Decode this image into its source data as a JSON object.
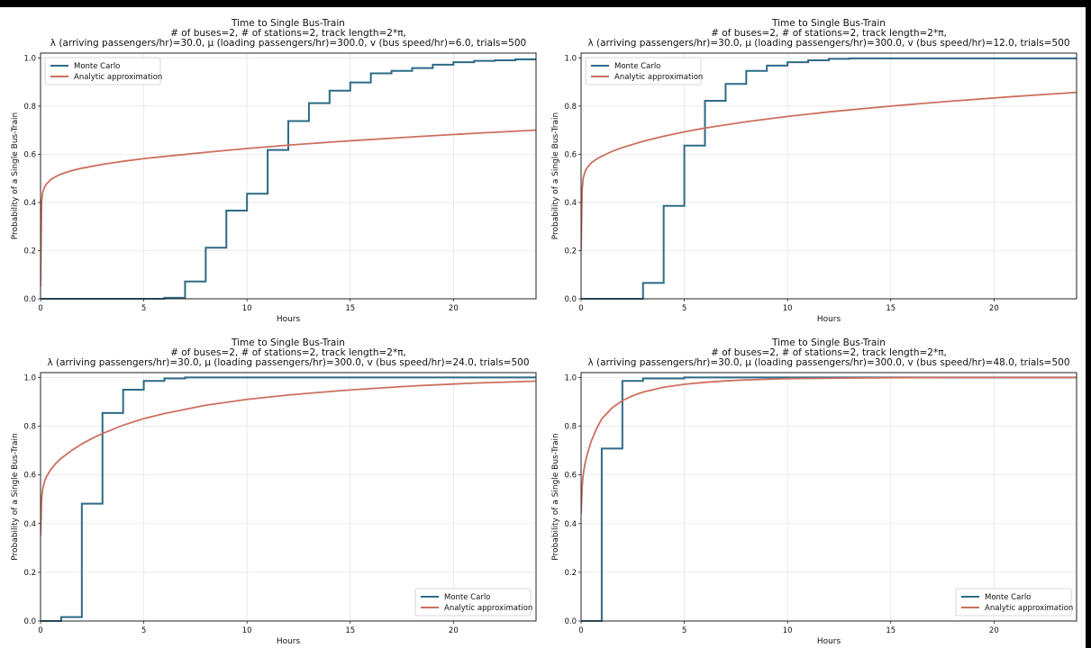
{
  "colors": {
    "monte_carlo": "#2e6a86",
    "analytic": "#cd6f5e",
    "grid": "#e6e6e6",
    "axes": "#222222",
    "background": "#ffffff",
    "frame": "#000000"
  },
  "chart_data": [
    {
      "type": "line",
      "title": "Time to Single Bus-Train",
      "subtitle_lines": [
        "# of buses=2, # of stations=2, track length=2*π,",
        "λ (arriving passengers/hr)=30.0, μ (loading passengers/hr)=300.0, v (bus speed/hr)=6.0, trials=500"
      ],
      "xlabel": "Hours",
      "ylabel": "Probability of a Single Bus-Train",
      "xlim": [
        0,
        24
      ],
      "ylim": [
        0,
        1.02
      ],
      "xticks": [
        0,
        5,
        10,
        15,
        20
      ],
      "xtick_labels": [
        "0",
        "5",
        "10",
        "15",
        "20"
      ],
      "yticks": [
        0,
        0.2,
        0.4,
        0.6,
        0.8,
        1.0
      ],
      "ytick_labels": [
        "0.0",
        "0.2",
        "0.4",
        "0.6",
        "0.8",
        "1.0"
      ],
      "grid": true,
      "legend_position": "top-left",
      "series": [
        {
          "name": "Monte Carlo",
          "kind": "step",
          "x": [
            0,
            6,
            7,
            8,
            9,
            10,
            11,
            12,
            13,
            14,
            15,
            16,
            17,
            18,
            19,
            20,
            21,
            22,
            23,
            24
          ],
          "y": [
            0,
            0.004,
            0.072,
            0.212,
            0.366,
            0.436,
            0.618,
            0.738,
            0.812,
            0.864,
            0.898,
            0.936,
            0.946,
            0.958,
            0.972,
            0.982,
            0.988,
            0.99,
            0.994,
            0.994
          ]
        },
        {
          "name": "Analytic approximation",
          "kind": "line",
          "x": [
            0,
            0.05,
            0.1,
            0.2,
            0.3,
            0.5,
            0.75,
            1,
            1.5,
            2,
            3,
            4,
            5,
            6,
            8,
            10,
            12,
            15,
            18,
            21,
            24
          ],
          "y": [
            0.05,
            0.4,
            0.44,
            0.465,
            0.478,
            0.495,
            0.508,
            0.518,
            0.532,
            0.542,
            0.558,
            0.571,
            0.582,
            0.591,
            0.608,
            0.624,
            0.638,
            0.656,
            0.672,
            0.687,
            0.7
          ]
        }
      ]
    },
    {
      "type": "line",
      "title": "Time to Single Bus-Train",
      "subtitle_lines": [
        "# of buses=2, # of stations=2, track length=2*π,",
        "λ (arriving passengers/hr)=30.0, μ (loading passengers/hr)=300.0, v (bus speed/hr)=12.0, trials=500"
      ],
      "xlabel": "Hours",
      "ylabel": "Probability of a Single Bus-Train",
      "xlim": [
        0,
        24
      ],
      "ylim": [
        0,
        1.02
      ],
      "xticks": [
        0,
        5,
        10,
        15,
        20
      ],
      "xtick_labels": [
        "0",
        "5",
        "10",
        "15",
        "20"
      ],
      "yticks": [
        0,
        0.2,
        0.4,
        0.6,
        0.8,
        1.0
      ],
      "ytick_labels": [
        "0.0",
        "0.2",
        "0.4",
        "0.6",
        "0.8",
        "1.0"
      ],
      "grid": true,
      "legend_position": "top-left",
      "series": [
        {
          "name": "Monte Carlo",
          "kind": "step",
          "x": [
            0,
            3,
            4,
            5,
            6,
            7,
            8,
            9,
            10,
            11,
            12,
            13,
            24
          ],
          "y": [
            0,
            0.066,
            0.386,
            0.636,
            0.822,
            0.892,
            0.946,
            0.968,
            0.982,
            0.99,
            0.996,
            0.998,
            0.998
          ]
        },
        {
          "name": "Analytic approximation",
          "kind": "line",
          "x": [
            0,
            0.05,
            0.1,
            0.2,
            0.3,
            0.5,
            0.75,
            1,
            1.5,
            2,
            3,
            4,
            5,
            6,
            8,
            10,
            12,
            15,
            18,
            21,
            24
          ],
          "y": [
            0.2,
            0.45,
            0.5,
            0.53,
            0.545,
            0.565,
            0.58,
            0.592,
            0.612,
            0.628,
            0.654,
            0.675,
            0.693,
            0.709,
            0.735,
            0.757,
            0.776,
            0.8,
            0.821,
            0.84,
            0.857
          ]
        }
      ]
    },
    {
      "type": "line",
      "title": "Time to Single Bus-Train",
      "subtitle_lines": [
        "# of buses=2, # of stations=2, track length=2*π,",
        "λ (arriving passengers/hr)=30.0, μ (loading passengers/hr)=300.0, v (bus speed/hr)=24.0, trials=500"
      ],
      "xlabel": "Hours",
      "ylabel": "Probability of a Single Bus-Train",
      "xlim": [
        0,
        24
      ],
      "ylim": [
        0,
        1.02
      ],
      "xticks": [
        0,
        5,
        10,
        15,
        20
      ],
      "xtick_labels": [
        "0",
        "5",
        "10",
        "15",
        "20"
      ],
      "yticks": [
        0,
        0.2,
        0.4,
        0.6,
        0.8,
        1.0
      ],
      "ytick_labels": [
        "0.0",
        "0.2",
        "0.4",
        "0.6",
        "0.8",
        "1.0"
      ],
      "grid": true,
      "legend_position": "bottom-right",
      "series": [
        {
          "name": "Monte Carlo",
          "kind": "step",
          "x": [
            0,
            1,
            2,
            3,
            4,
            5,
            6,
            7,
            24
          ],
          "y": [
            0,
            0.016,
            0.482,
            0.854,
            0.95,
            0.986,
            0.996,
            1.0,
            1.0
          ]
        },
        {
          "name": "Analytic approximation",
          "kind": "line",
          "x": [
            0,
            0.05,
            0.1,
            0.2,
            0.3,
            0.5,
            0.75,
            1,
            1.5,
            2,
            2.5,
            3,
            4,
            5,
            6,
            8,
            10,
            12,
            15,
            18,
            21,
            24
          ],
          "y": [
            0.35,
            0.5,
            0.54,
            0.575,
            0.595,
            0.622,
            0.648,
            0.668,
            0.7,
            0.727,
            0.75,
            0.77,
            0.804,
            0.831,
            0.852,
            0.886,
            0.91,
            0.928,
            0.949,
            0.965,
            0.977,
            0.985
          ]
        }
      ]
    },
    {
      "type": "line",
      "title": "Time to Single Bus-Train",
      "subtitle_lines": [
        "# of buses=2, # of stations=2, track length=2*π,",
        "λ (arriving passengers/hr)=30.0, μ (loading passengers/hr)=300.0, v (bus speed/hr)=48.0, trials=500"
      ],
      "xlabel": "Hours",
      "ylabel": "Probability of a Single Bus-Train",
      "xlim": [
        0,
        24
      ],
      "ylim": [
        0,
        1.02
      ],
      "xticks": [
        0,
        5,
        10,
        15,
        20
      ],
      "xtick_labels": [
        "0",
        "5",
        "10",
        "15",
        "20"
      ],
      "yticks": [
        0,
        0.2,
        0.4,
        0.6,
        0.8,
        1.0
      ],
      "ytick_labels": [
        "0.0",
        "0.2",
        "0.4",
        "0.6",
        "0.8",
        "1.0"
      ],
      "grid": true,
      "legend_position": "bottom-right",
      "series": [
        {
          "name": "Monte Carlo",
          "kind": "step",
          "x": [
            0,
            1,
            2,
            3,
            5,
            24
          ],
          "y": [
            0,
            0.708,
            0.986,
            0.996,
            1.0,
            1.0
          ]
        },
        {
          "name": "Analytic approximation",
          "kind": "line",
          "x": [
            0,
            0.05,
            0.1,
            0.2,
            0.3,
            0.5,
            0.75,
            1,
            1.5,
            2,
            2.5,
            3,
            4,
            5,
            6,
            7,
            8,
            10,
            12,
            15,
            18,
            21,
            24
          ],
          "y": [
            0.44,
            0.55,
            0.6,
            0.65,
            0.685,
            0.74,
            0.79,
            0.83,
            0.875,
            0.905,
            0.925,
            0.94,
            0.96,
            0.972,
            0.98,
            0.986,
            0.99,
            0.995,
            0.997,
            0.999,
            1.0,
            1.0,
            1.0
          ]
        }
      ]
    }
  ]
}
